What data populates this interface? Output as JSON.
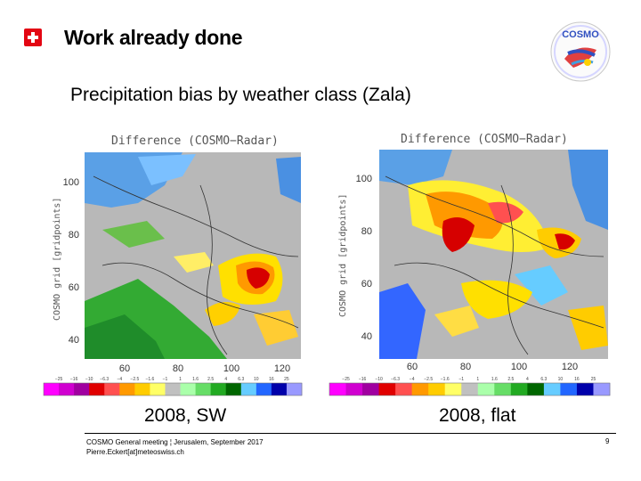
{
  "header": {
    "title": "Work already done",
    "flag_icon": "swiss-flag-icon",
    "logo_icon": "cosmo-logo-icon",
    "logo_text": "COSMO"
  },
  "subtitle": "Precipitation bias by weather class (Zala)",
  "maps": [
    {
      "title": "Difference (COSMO−Radar)",
      "ylabel": "COSMO grid [gridpoints]",
      "yticks": [
        "100",
        "80",
        "60",
        "40"
      ],
      "xticks": [
        "60",
        "80",
        "100",
        "120"
      ],
      "colorbar_labels": [
        "−25",
        "−16",
        "−10",
        "−6.3",
        "−4",
        "−2.5",
        "−1.6",
        "−1",
        "1",
        "1.6",
        "2.5",
        "4",
        "6.3",
        "10",
        "16",
        "25"
      ],
      "caption": "2008, SW"
    },
    {
      "title": "Difference (COSMO−Radar)",
      "ylabel": "COSMO grid [gridpoints]",
      "yticks": [
        "100",
        "80",
        "60",
        "40"
      ],
      "xticks": [
        "60",
        "80",
        "100",
        "120"
      ],
      "colorbar_labels": [
        "−25",
        "−16",
        "−10",
        "−6.3",
        "−4",
        "−2.5",
        "−1.6",
        "−1",
        "1",
        "1.6",
        "2.5",
        "4",
        "6.3",
        "10",
        "16",
        "25"
      ],
      "caption": "2008, flat"
    }
  ],
  "colorbar_colors": [
    "#ff00ff",
    "#d000d0",
    "#a000a0",
    "#e00000",
    "#ff5050",
    "#ff9900",
    "#ffcc00",
    "#ffff66",
    "#c0c0c0",
    "#aaffaa",
    "#66dd66",
    "#22aa22",
    "#006600",
    "#66ccff",
    "#2266ff",
    "#0000aa",
    "#9999ff"
  ],
  "footer": {
    "line1": "COSMO General meeting ¦ Jerusalem, September 2017",
    "line2": "Pierre.Eckert[at]meteoswiss.ch",
    "page": "9"
  }
}
